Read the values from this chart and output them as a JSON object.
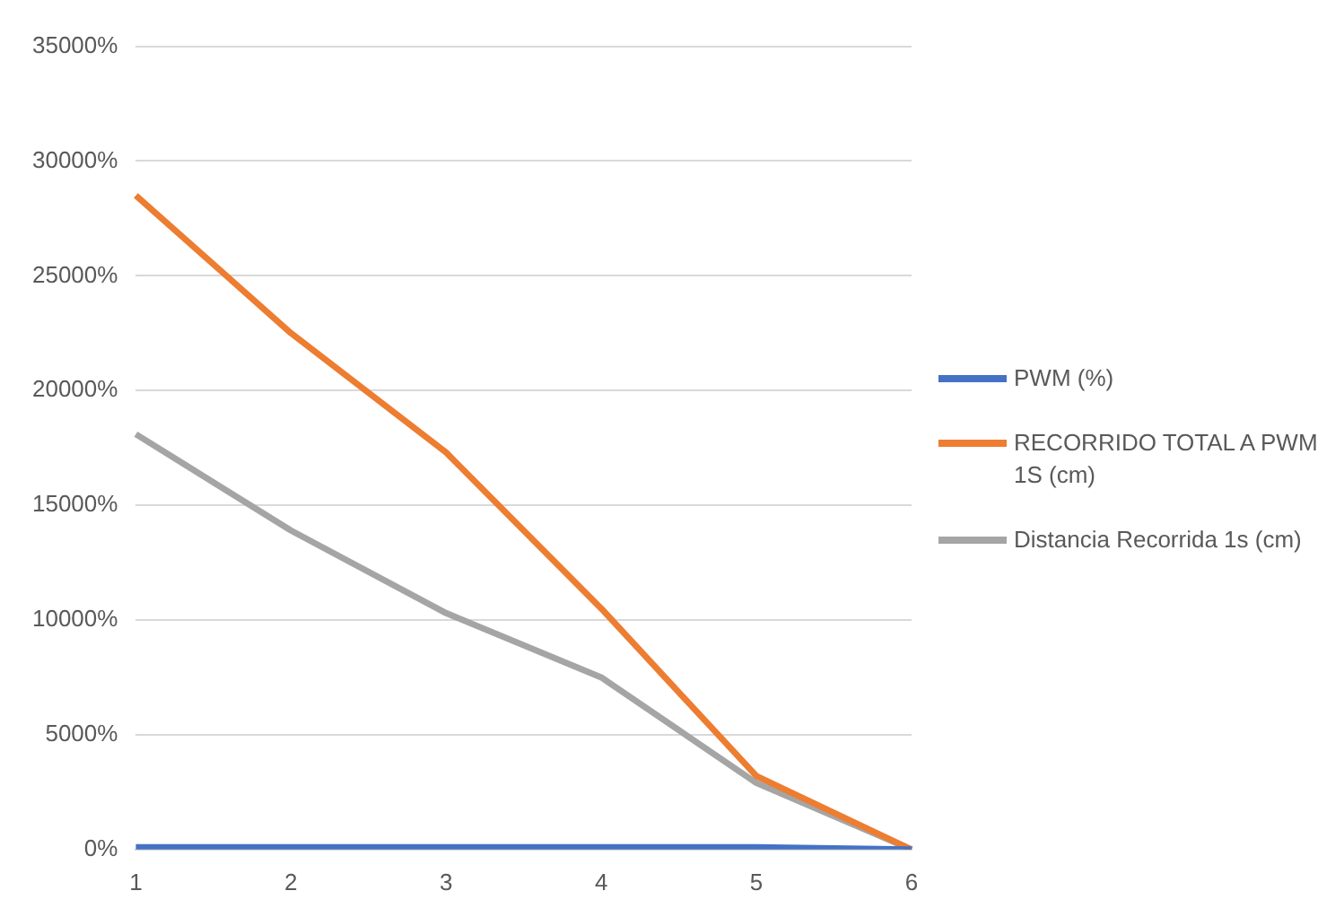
{
  "chart_data": {
    "type": "line",
    "categories": [
      "1",
      "2",
      "3",
      "4",
      "5",
      "6"
    ],
    "series": [
      {
        "name": "PWM  (%)",
        "color": "#4472c4",
        "values": [
          100,
          100,
          100,
          100,
          100,
          0
        ]
      },
      {
        "name": "RECORRIDO TOTAL A PWM 1S (cm)",
        "color": "#ed7d31",
        "values": [
          28500,
          22500,
          17300,
          10500,
          3200,
          0
        ]
      },
      {
        "name": "Distancia  Recorrida 1s (cm)",
        "color": "#a5a5a5",
        "values": [
          18100,
          13900,
          10300,
          7500,
          2900,
          0
        ]
      }
    ],
    "ylim": [
      0,
      35000
    ],
    "yticks": [
      {
        "value": 0,
        "label": "0%"
      },
      {
        "value": 5000,
        "label": "5000%"
      },
      {
        "value": 10000,
        "label": "10000%"
      },
      {
        "value": 15000,
        "label": "15000%"
      },
      {
        "value": 20000,
        "label": "20000%"
      },
      {
        "value": 25000,
        "label": "25000%"
      },
      {
        "value": 30000,
        "label": "30000%"
      },
      {
        "value": 35000,
        "label": "35000%"
      }
    ],
    "grid": "y",
    "legend": "right",
    "marker": "none",
    "line_style": "solid"
  }
}
